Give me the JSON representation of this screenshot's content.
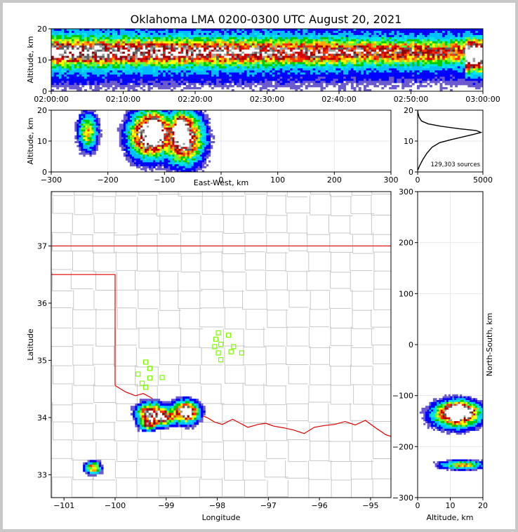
{
  "title": "Oklahoma LMA 0200-0300 UTC August 20, 2021",
  "colors": {
    "border": "#e00000",
    "county": "#c8c8c8",
    "station": "#7cfc00",
    "grid": "#e8e8e8",
    "histogram": "#000000",
    "frame_bg": "#c8c8c8"
  },
  "chart_data": [
    {
      "id": "time-altitude",
      "type": "heatmap",
      "xlabel": "",
      "ylabel": "Altitude, km",
      "xlim_minutes": [
        0,
        60
      ],
      "ylim": [
        0,
        20
      ],
      "xticks": [
        "02:00:00",
        "02:10:00",
        "02:20:00",
        "02:30:00",
        "02:40:00",
        "02:50:00",
        "03:00:00"
      ],
      "yticks": [
        "0",
        "10",
        "20"
      ],
      "ytick_values": [
        0,
        10,
        20
      ],
      "band_center_km": 12.5,
      "band_halfwidth_km": 6,
      "core_km": [
        11,
        14
      ],
      "late_burst_minutes": [
        57.5,
        60
      ]
    },
    {
      "id": "ew-altitude",
      "type": "heatmap",
      "xlabel": "East-West, km",
      "ylabel": "Altitude, km",
      "xlim": [
        -300,
        300
      ],
      "ylim": [
        0,
        20
      ],
      "xtick_values": [
        -300,
        -200,
        -100,
        0,
        100,
        200,
        300
      ],
      "xticks": [
        "−300",
        "−200",
        "−100",
        "0",
        "100",
        "200",
        "300"
      ],
      "yticks": [
        "0",
        "10",
        "20"
      ],
      "ytick_values": [
        0,
        10,
        20
      ],
      "clusters": [
        {
          "x": -235,
          "z": 13,
          "sx": 10,
          "sz": 3.5,
          "intensity": 0.55
        },
        {
          "x": -130,
          "z": 12,
          "sx": 20,
          "sz": 4.5,
          "intensity": 1.0
        },
        {
          "x": -115,
          "z": 13,
          "sx": 10,
          "sz": 3,
          "intensity": 1.1
        },
        {
          "x": -65,
          "z": 11,
          "sx": 20,
          "sz": 5,
          "intensity": 1.0
        },
        {
          "x": -70,
          "z": 13,
          "sx": 8,
          "sz": 2.5,
          "intensity": 1.2
        }
      ]
    },
    {
      "id": "altitude-histogram",
      "type": "line",
      "xlim": [
        0,
        5000
      ],
      "ylim": [
        0,
        20
      ],
      "xticks": [
        "0",
        "5000"
      ],
      "xtick_values": [
        0,
        5000
      ],
      "yticks": [
        "0",
        "10",
        "20"
      ],
      "ytick_values": [
        0,
        10,
        20
      ],
      "annotation": "129,303 sources",
      "profile": [
        [
          0,
          0.5
        ],
        [
          150,
          2
        ],
        [
          400,
          4
        ],
        [
          700,
          6
        ],
        [
          1100,
          8
        ],
        [
          1700,
          9.5
        ],
        [
          2600,
          10.5
        ],
        [
          3600,
          11.5
        ],
        [
          4400,
          12.3
        ],
        [
          4850,
          12.8
        ],
        [
          4500,
          13.4
        ],
        [
          3200,
          14
        ],
        [
          1800,
          14.8
        ],
        [
          800,
          15.6
        ],
        [
          300,
          16.5
        ],
        [
          100,
          17.8
        ],
        [
          30,
          19
        ],
        [
          0,
          20
        ]
      ]
    },
    {
      "id": "plan-view",
      "type": "scatter",
      "xlabel": "Longitude",
      "ylabel": "Latitude",
      "xlim": [
        -101.25,
        -94.6
      ],
      "ylim": [
        32.6,
        37.95
      ],
      "xticks": [
        "−101",
        "−100",
        "−99",
        "−98",
        "−97",
        "−96",
        "−95"
      ],
      "xtick_values": [
        -101,
        -100,
        -99,
        -98,
        -97,
        -96,
        -95
      ],
      "yticks": [
        "33",
        "34",
        "35",
        "36",
        "37"
      ],
      "ytick_values": [
        33,
        34,
        35,
        36,
        37
      ],
      "clusters": [
        {
          "lon": -100.43,
          "lat": 33.12,
          "sx": 0.09,
          "sy": 0.06,
          "intensity": 0.65
        },
        {
          "lon": -99.3,
          "lat": 34.08,
          "sx": 0.16,
          "sy": 0.1,
          "intensity": 0.9
        },
        {
          "lon": -99.05,
          "lat": 34.0,
          "sx": 0.12,
          "sy": 0.08,
          "intensity": 0.85
        },
        {
          "lon": -99.35,
          "lat": 33.88,
          "sx": 0.1,
          "sy": 0.06,
          "intensity": 0.7
        },
        {
          "lon": -98.62,
          "lat": 34.1,
          "sx": 0.15,
          "sy": 0.11,
          "intensity": 1.1
        },
        {
          "lon": -98.58,
          "lat": 34.1,
          "sx": 0.05,
          "sy": 0.04,
          "intensity": 1.3
        }
      ],
      "stations": [
        [
          -97.98,
          35.48
        ],
        [
          -97.78,
          35.44
        ],
        [
          -98.03,
          35.37
        ],
        [
          -97.93,
          35.28
        ],
        [
          -98.05,
          35.24
        ],
        [
          -97.68,
          35.24
        ],
        [
          -97.73,
          35.15
        ],
        [
          -97.98,
          35.13
        ],
        [
          -97.52,
          35.13
        ],
        [
          -97.93,
          35.01
        ],
        [
          -99.4,
          34.97
        ],
        [
          -99.32,
          34.86
        ],
        [
          -99.55,
          34.76
        ],
        [
          -99.32,
          34.69
        ],
        [
          -99.08,
          34.7
        ],
        [
          -99.47,
          34.6
        ],
        [
          -99.4,
          34.53
        ]
      ]
    },
    {
      "id": "ns-altitude",
      "type": "heatmap",
      "xlabel": "Altitude, km",
      "ylabel": "North-South, km",
      "xlim": [
        0,
        20
      ],
      "ylim": [
        -300,
        300
      ],
      "xticks": [
        "0",
        "10",
        "20"
      ],
      "xtick_values": [
        0,
        10,
        20
      ],
      "yticks": [
        "−300",
        "−200",
        "−100",
        "0",
        "100",
        "200",
        "300"
      ],
      "ytick_values": [
        -300,
        -200,
        -100,
        0,
        100,
        200,
        300
      ],
      "clusters": [
        {
          "z": 12,
          "y": -137,
          "sz": 4.2,
          "sy": 15,
          "intensity": 1.0
        },
        {
          "z": 13,
          "y": -130,
          "sz": 2.5,
          "sy": 8,
          "intensity": 1.3
        },
        {
          "z": 13.5,
          "y": -236,
          "sz": 3.8,
          "sy": 5,
          "intensity": 0.55
        }
      ]
    }
  ]
}
